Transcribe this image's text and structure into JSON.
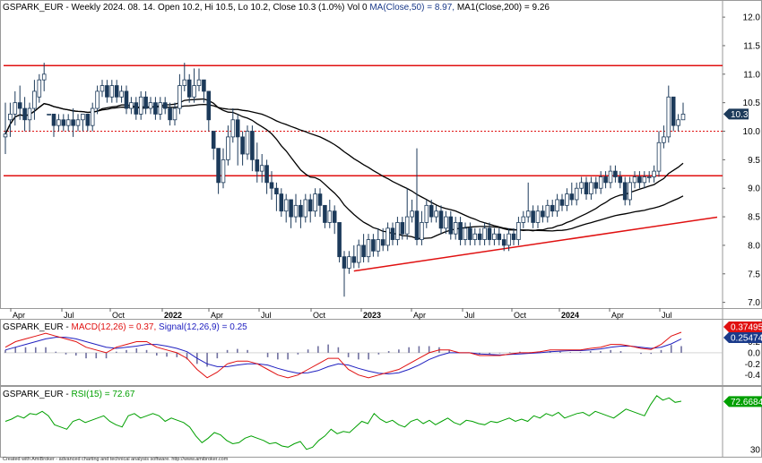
{
  "main_header": {
    "prefix": "GSPARK_EUR - Weekly 2024. 08. 14. Open 10.2, Hi 10.5, Lo 10.2, Close 10.3 (1.0%) Vol 0 ",
    "ma50": "MA(Close,50) = 8.97,",
    "ma200": " MA1(Close,200) = 9.26"
  },
  "macd_header": {
    "prefix": "GSPARK_EUR - ",
    "macd": "MACD(12,26) = 0.37,",
    "signal": " Signal(12,26,9) = 0.25"
  },
  "rsi_header": {
    "prefix": "GSPARK_EUR - ",
    "rsi": "RSI(15) = 72.67"
  },
  "badges": {
    "price": "10.3",
    "macd": "0.374958",
    "signal": "0.254748",
    "rsi": "72.6684"
  },
  "footer": "Created with AmiBroker - advanced charting and technical analysis software. http://www.amibroker.com",
  "colors": {
    "ma50": "#000000",
    "ma200": "#000000",
    "support_lines": "#e01010",
    "trendline": "#e01010",
    "macd": "#e01010",
    "signal": "#2020c0",
    "histogram": "#7070a0",
    "rsi": "#00a000",
    "price_badge": "#1c3a5a",
    "macd_badge": "#e01010",
    "signal_badge": "#1a3a8a",
    "rsi_badge": "#00a000",
    "candle_up_fill": "#ffffff",
    "candle_down_fill": "#1c3a5a",
    "candle_stroke": "#1c3a5a"
  },
  "chart_data": [
    {
      "type": "candlestick",
      "panel": "price",
      "x_tick_labels": [
        "Apr",
        "Jul",
        "Oct",
        "2022",
        "Apr",
        "Jul",
        "Oct",
        "2023",
        "Apr",
        "Jul",
        "Oct",
        "2024",
        "Apr",
        "Jul"
      ],
      "y_tick_labels": [
        "12.0",
        "11.5",
        "11.0",
        "10.5",
        "10.0",
        "9.5",
        "9.0",
        "8.5",
        "8.0",
        "7.5",
        "7.0"
      ],
      "ylim": [
        6.9,
        12.3
      ],
      "horizontal_lines": [
        {
          "value": 11.15,
          "style": "solid"
        },
        {
          "value": 9.22,
          "style": "solid"
        },
        {
          "value": 10.0,
          "style": "dotted"
        }
      ],
      "trendline": {
        "from": {
          "x_index": 72,
          "value": 7.55
        },
        "to": {
          "x_index": 165,
          "value": 8.72
        }
      },
      "candles": [
        [
          9.9,
          9.95,
          10.5,
          9.6
        ],
        [
          10.2,
          10.3,
          10.5,
          9.9
        ],
        [
          10.3,
          10.5,
          10.7,
          10.1
        ],
        [
          10.5,
          10.4,
          10.8,
          10.2
        ],
        [
          10.4,
          10.2,
          10.6,
          10.0
        ],
        [
          10.2,
          10.4,
          10.5,
          10.0
        ],
        [
          10.4,
          10.7,
          10.9,
          10.2
        ],
        [
          10.6,
          10.9,
          11.0,
          10.5
        ],
        [
          10.9,
          11.0,
          11.2,
          10.7
        ],
        [
          10.3,
          10.3,
          10.3,
          10.3
        ],
        [
          10.3,
          10.1,
          10.3,
          9.9
        ],
        [
          10.1,
          10.2,
          10.3,
          10.0
        ],
        [
          10.2,
          10.1,
          10.3,
          10.0
        ],
        [
          10.1,
          10.2,
          10.3,
          10.0
        ],
        [
          10.2,
          10.1,
          10.4,
          9.9
        ],
        [
          10.1,
          10.2,
          10.3,
          10.0
        ],
        [
          10.2,
          10.3,
          10.3,
          10.0
        ],
        [
          10.3,
          10.1,
          10.3,
          10.0
        ],
        [
          10.1,
          10.4,
          10.5,
          10.0
        ],
        [
          10.4,
          10.7,
          10.8,
          10.3
        ],
        [
          10.7,
          10.8,
          10.9,
          10.6
        ],
        [
          10.8,
          10.6,
          10.9,
          10.5
        ],
        [
          10.6,
          10.8,
          10.9,
          10.5
        ],
        [
          10.8,
          10.6,
          10.9,
          10.5
        ],
        [
          10.6,
          10.7,
          10.8,
          10.5
        ],
        [
          10.7,
          10.4,
          10.8,
          10.3
        ],
        [
          10.4,
          10.5,
          10.6,
          10.3
        ],
        [
          10.5,
          10.3,
          10.6,
          10.2
        ],
        [
          10.3,
          10.6,
          10.7,
          10.2
        ],
        [
          10.6,
          10.4,
          10.7,
          10.3
        ],
        [
          10.4,
          10.5,
          10.6,
          10.3
        ],
        [
          10.5,
          10.3,
          10.6,
          10.2
        ],
        [
          10.3,
          10.5,
          10.6,
          10.2
        ],
        [
          10.5,
          10.4,
          10.6,
          10.3
        ],
        [
          10.4,
          10.2,
          10.5,
          10.1
        ],
        [
          10.2,
          10.4,
          10.5,
          10.1
        ],
        [
          10.4,
          10.8,
          11.0,
          10.3
        ],
        [
          10.8,
          10.9,
          11.2,
          10.7
        ],
        [
          10.9,
          10.6,
          11.0,
          10.5
        ],
        [
          10.6,
          10.8,
          11.1,
          10.5
        ],
        [
          10.8,
          10.9,
          11.1,
          10.7
        ],
        [
          10.9,
          10.7,
          10.9,
          10.5
        ],
        [
          10.7,
          10.2,
          10.7,
          10.0
        ],
        [
          10.0,
          9.7,
          10.0,
          9.5
        ],
        [
          9.7,
          9.1,
          9.7,
          8.9
        ],
        [
          9.1,
          9.5,
          9.7,
          9.0
        ],
        [
          9.5,
          9.9,
          10.1,
          9.4
        ],
        [
          9.9,
          10.2,
          10.4,
          9.8
        ],
        [
          10.2,
          9.9,
          10.3,
          9.4
        ],
        [
          9.9,
          9.6,
          10.0,
          9.4
        ],
        [
          9.6,
          10.0,
          10.1,
          9.5
        ],
        [
          10.0,
          9.5,
          10.1,
          9.3
        ],
        [
          9.5,
          9.3,
          9.8,
          9.1
        ],
        [
          9.3,
          9.4,
          9.6,
          9.1
        ],
        [
          9.4,
          9.1,
          9.5,
          8.9
        ],
        [
          9.1,
          9.0,
          9.3,
          8.8
        ],
        [
          9.0,
          8.9,
          9.1,
          8.6
        ],
        [
          8.9,
          8.6,
          9.0,
          8.5
        ],
        [
          8.6,
          8.8,
          8.9,
          8.4
        ],
        [
          8.8,
          8.5,
          8.8,
          8.3
        ],
        [
          8.5,
          8.7,
          8.9,
          8.4
        ],
        [
          8.7,
          8.5,
          8.8,
          8.3
        ],
        [
          8.5,
          8.8,
          8.9,
          8.4
        ],
        [
          8.8,
          8.6,
          8.9,
          8.4
        ],
        [
          8.6,
          8.9,
          9.0,
          8.5
        ],
        [
          8.9,
          8.7,
          9.0,
          8.5
        ],
        [
          8.7,
          8.4,
          8.7,
          8.3
        ],
        [
          8.4,
          8.6,
          8.8,
          8.3
        ],
        [
          8.6,
          8.4,
          8.7,
          8.2
        ],
        [
          8.4,
          7.8,
          8.4,
          7.7
        ],
        [
          7.8,
          7.6,
          7.9,
          7.1
        ],
        [
          7.6,
          7.8,
          7.9,
          7.5
        ],
        [
          7.8,
          7.7,
          8.0,
          7.6
        ],
        [
          7.7,
          8.0,
          8.1,
          7.6
        ],
        [
          8.0,
          7.8,
          8.2,
          7.7
        ],
        [
          7.8,
          8.1,
          8.2,
          7.7
        ],
        [
          8.1,
          7.9,
          8.2,
          7.8
        ],
        [
          7.9,
          8.1,
          8.3,
          7.8
        ],
        [
          8.1,
          8.0,
          8.3,
          7.9
        ],
        [
          8.0,
          8.3,
          8.4,
          7.9
        ],
        [
          8.3,
          8.1,
          8.4,
          8.0
        ],
        [
          8.1,
          8.4,
          8.5,
          8.0
        ],
        [
          8.4,
          8.2,
          8.5,
          8.1
        ],
        [
          8.2,
          8.5,
          9.0,
          8.1
        ],
        [
          8.5,
          8.6,
          8.8,
          8.4
        ],
        [
          8.6,
          8.1,
          9.7,
          8.0
        ],
        [
          8.1,
          8.4,
          8.6,
          8.0
        ],
        [
          8.4,
          8.7,
          8.8,
          8.3
        ],
        [
          8.7,
          8.5,
          8.8,
          8.4
        ],
        [
          8.5,
          8.6,
          8.7,
          8.4
        ],
        [
          8.6,
          8.3,
          8.7,
          8.2
        ],
        [
          8.3,
          8.5,
          8.6,
          8.2
        ],
        [
          8.5,
          8.2,
          8.6,
          8.1
        ],
        [
          8.2,
          8.4,
          8.5,
          8.1
        ],
        [
          8.4,
          8.1,
          8.5,
          8.0
        ],
        [
          8.1,
          8.3,
          8.4,
          8.0
        ],
        [
          8.3,
          8.1,
          8.4,
          8.0
        ],
        [
          8.1,
          8.2,
          8.3,
          8.0
        ],
        [
          8.2,
          8.1,
          8.3,
          8.0
        ],
        [
          8.1,
          8.3,
          8.4,
          8.0
        ],
        [
          8.3,
          8.1,
          8.4,
          8.0
        ],
        [
          8.1,
          8.2,
          8.3,
          8.0
        ],
        [
          8.2,
          8.1,
          8.3,
          8.0
        ],
        [
          8.1,
          8.0,
          8.2,
          7.9
        ],
        [
          8.0,
          8.2,
          8.3,
          7.9
        ],
        [
          8.2,
          8.1,
          8.3,
          8.0
        ],
        [
          8.1,
          8.4,
          8.5,
          8.0
        ],
        [
          8.4,
          8.5,
          8.6,
          8.3
        ],
        [
          8.5,
          8.6,
          9.1,
          8.4
        ],
        [
          8.6,
          8.4,
          8.7,
          8.3
        ],
        [
          8.4,
          8.6,
          8.7,
          8.3
        ],
        [
          8.6,
          8.5,
          8.7,
          8.4
        ],
        [
          8.5,
          8.7,
          8.8,
          8.4
        ],
        [
          8.7,
          8.6,
          8.8,
          8.5
        ],
        [
          8.6,
          8.8,
          8.9,
          8.5
        ],
        [
          8.8,
          8.7,
          8.9,
          8.6
        ],
        [
          8.7,
          8.9,
          9.0,
          8.6
        ],
        [
          8.9,
          8.8,
          9.1,
          8.7
        ],
        [
          8.8,
          9.0,
          9.1,
          8.7
        ],
        [
          9.0,
          9.1,
          9.2,
          8.9
        ],
        [
          9.1,
          8.9,
          9.2,
          8.8
        ],
        [
          8.9,
          9.1,
          9.2,
          8.8
        ],
        [
          9.1,
          9.0,
          9.2,
          8.9
        ],
        [
          9.0,
          9.2,
          9.3,
          8.9
        ],
        [
          9.2,
          9.1,
          9.3,
          9.0
        ],
        [
          9.1,
          9.3,
          9.4,
          9.0
        ],
        [
          9.3,
          9.2,
          9.4,
          9.1
        ],
        [
          9.2,
          9.1,
          9.3,
          9.0
        ],
        [
          9.1,
          8.8,
          9.2,
          8.7
        ],
        [
          8.8,
          9.1,
          9.2,
          8.7
        ],
        [
          9.1,
          9.2,
          9.3,
          9.0
        ],
        [
          9.2,
          9.1,
          9.3,
          9.0
        ],
        [
          9.1,
          9.2,
          9.3,
          9.0
        ],
        [
          9.2,
          9.2,
          9.3,
          9.1
        ],
        [
          9.2,
          9.3,
          9.4,
          9.1
        ],
        [
          9.3,
          9.8,
          10.0,
          9.2
        ],
        [
          9.8,
          9.9,
          10.1,
          9.7
        ],
        [
          9.9,
          10.6,
          10.8,
          9.8
        ],
        [
          10.6,
          10.1,
          10.6,
          10.0
        ],
        [
          10.1,
          10.2,
          10.3,
          10.0
        ],
        [
          10.2,
          10.3,
          10.5,
          10.2
        ]
      ]
    },
    {
      "type": "line",
      "panel": "macd",
      "y_tick_labels": [
        "0.4",
        "0.2",
        "0.0",
        "-0.2",
        "-0.4"
      ],
      "ylim": [
        -0.55,
        0.58
      ],
      "series": [
        {
          "name": "MACD(12,26)",
          "values": [
            0.1,
            0.2,
            0.25,
            0.3,
            0.35,
            0.3,
            0.25,
            0.2,
            0.1,
            0.05,
            0.0,
            0.1,
            0.15,
            0.2,
            0.2,
            0.1,
            0.05,
            0.0,
            -0.1,
            -0.3,
            -0.45,
            -0.35,
            -0.2,
            -0.15,
            -0.15,
            -0.2,
            -0.3,
            -0.4,
            -0.45,
            -0.4,
            -0.3,
            -0.2,
            -0.1,
            -0.1,
            -0.3,
            -0.4,
            -0.45,
            -0.4,
            -0.35,
            -0.3,
            -0.2,
            -0.1,
            0.0,
            0.05,
            0.05,
            0.0,
            0.0,
            -0.05,
            -0.05,
            -0.05,
            -0.02,
            0.0,
            0.0,
            0.02,
            0.05,
            0.05,
            0.05,
            0.05,
            0.08,
            0.1,
            0.15,
            0.15,
            0.12,
            0.08,
            0.06,
            0.15,
            0.3,
            0.37
          ]
        },
        {
          "name": "Signal(12,26,9)",
          "values": [
            0.05,
            0.1,
            0.15,
            0.2,
            0.25,
            0.28,
            0.28,
            0.25,
            0.2,
            0.15,
            0.1,
            0.08,
            0.1,
            0.12,
            0.15,
            0.15,
            0.12,
            0.08,
            0.02,
            -0.1,
            -0.2,
            -0.25,
            -0.25,
            -0.22,
            -0.2,
            -0.2,
            -0.22,
            -0.28,
            -0.33,
            -0.37,
            -0.36,
            -0.32,
            -0.25,
            -0.2,
            -0.22,
            -0.28,
            -0.33,
            -0.37,
            -0.38,
            -0.36,
            -0.3,
            -0.22,
            -0.12,
            -0.05,
            0.0,
            0.0,
            0.0,
            -0.02,
            -0.03,
            -0.04,
            -0.03,
            -0.02,
            -0.01,
            0.0,
            0.02,
            0.03,
            0.04,
            0.04,
            0.05,
            0.07,
            0.1,
            0.12,
            0.12,
            0.1,
            0.08,
            0.1,
            0.16,
            0.25
          ]
        }
      ],
      "histogram": [
        0.05,
        0.1,
        0.1,
        0.1,
        0.1,
        0.02,
        -0.03,
        -0.05,
        -0.1,
        -0.1,
        -0.1,
        0.02,
        0.05,
        0.08,
        0.05,
        -0.05,
        -0.07,
        -0.08,
        -0.12,
        -0.2,
        -0.25,
        -0.1,
        0.05,
        0.07,
        0.05,
        0.0,
        -0.08,
        -0.12,
        -0.12,
        -0.03,
        0.06,
        0.12,
        0.15,
        0.1,
        -0.08,
        -0.12,
        -0.12,
        -0.03,
        0.03,
        0.06,
        0.1,
        0.12,
        0.12,
        0.1,
        0.05,
        0.0,
        0.0,
        -0.03,
        -0.02,
        -0.01,
        0.01,
        0.02,
        0.01,
        0.02,
        0.03,
        0.02,
        0.01,
        0.01,
        0.03,
        0.03,
        0.05,
        0.03,
        0.0,
        -0.02,
        -0.02,
        0.05,
        0.14,
        0.12
      ]
    },
    {
      "type": "line",
      "panel": "rsi",
      "y_tick_labels": [
        "30"
      ],
      "ylim": [
        25,
        85
      ],
      "series": [
        {
          "name": "RSI(15)",
          "values": [
            55,
            57,
            60,
            58,
            62,
            61,
            64,
            60,
            52,
            50,
            48,
            55,
            57,
            54,
            56,
            58,
            60,
            55,
            52,
            50,
            60,
            62,
            58,
            60,
            62,
            60,
            55,
            58,
            56,
            54,
            50,
            42,
            36,
            40,
            45,
            43,
            38,
            35,
            36,
            40,
            42,
            40,
            38,
            35,
            36,
            33,
            32,
            35,
            37,
            30,
            32,
            38,
            42,
            48,
            44,
            46,
            45,
            50,
            55,
            53,
            62,
            57,
            54,
            56,
            52,
            50,
            55,
            57,
            53,
            56,
            52,
            55,
            58,
            54,
            52,
            56,
            55,
            53,
            52,
            55,
            54,
            56,
            58,
            55,
            57,
            55,
            60,
            58,
            62,
            60,
            63,
            58,
            60,
            62,
            63,
            60,
            64,
            62,
            60,
            58,
            62,
            66,
            64,
            62,
            60,
            70,
            78,
            74,
            76,
            72,
            73
          ]
        }
      ]
    }
  ]
}
